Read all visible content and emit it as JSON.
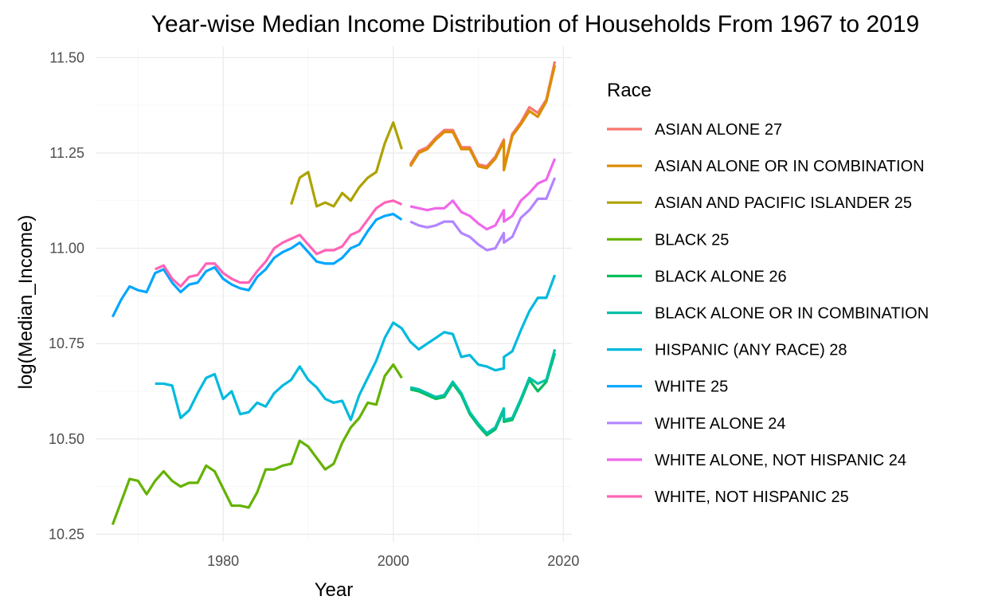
{
  "chart_data": {
    "type": "line",
    "title": "Year-wise Median Income Distribution of Households From 1967 to 2019",
    "xlabel": "Year",
    "ylabel": "log(Median_Income)",
    "xlim": [
      1965,
      2021
    ],
    "ylim": [
      10.23,
      11.53
    ],
    "x_ticks": [
      1980,
      2000,
      2020
    ],
    "y_ticks": [
      10.25,
      10.5,
      10.75,
      11.0,
      11.25,
      11.5
    ],
    "y_tick_labels": [
      "10.25",
      "10.50",
      "10.75",
      "11.00",
      "11.25",
      "11.50"
    ],
    "grid": true,
    "legend": {
      "title": "Race",
      "position": "right"
    },
    "series": [
      {
        "name": "ASIAN ALONE 27",
        "color": "#F8766D",
        "x": [
          2002,
          2003,
          2004,
          2005,
          2006,
          2007,
          2008,
          2009,
          2010,
          2011,
          2012,
          2013,
          2013.01,
          2014,
          2015,
          2016,
          2017,
          2018,
          2019
        ],
        "y": [
          11.22,
          11.255,
          11.265,
          11.29,
          11.31,
          11.31,
          11.265,
          11.265,
          11.22,
          11.215,
          11.24,
          11.285,
          11.21,
          11.3,
          11.33,
          11.37,
          11.355,
          11.39,
          11.49
        ]
      },
      {
        "name": "ASIAN ALONE OR IN COMBINATION",
        "color": "#DB8E00",
        "x": [
          2002,
          2003,
          2004,
          2005,
          2006,
          2007,
          2008,
          2009,
          2010,
          2011,
          2012,
          2013,
          2013.01,
          2014,
          2015,
          2016,
          2017,
          2018,
          2019
        ],
        "y": [
          11.215,
          11.25,
          11.26,
          11.285,
          11.305,
          11.305,
          11.26,
          11.26,
          11.215,
          11.21,
          11.235,
          11.28,
          11.205,
          11.295,
          11.325,
          11.36,
          11.345,
          11.385,
          11.48
        ]
      },
      {
        "name": "ASIAN AND PACIFIC ISLANDER 25",
        "color": "#AEA200",
        "x": [
          1988,
          1989,
          1990,
          1991,
          1992,
          1993,
          1994,
          1995,
          1996,
          1997,
          1998,
          1999,
          2000,
          2001
        ],
        "y": [
          11.115,
          11.185,
          11.2,
          11.11,
          11.12,
          11.11,
          11.145,
          11.125,
          11.16,
          11.185,
          11.2,
          11.275,
          11.33,
          11.26
        ]
      },
      {
        "name": "BLACK 25",
        "color": "#64B200",
        "x": [
          1967,
          1968,
          1969,
          1970,
          1971,
          1972,
          1973,
          1974,
          1975,
          1976,
          1977,
          1978,
          1979,
          1980,
          1981,
          1982,
          1983,
          1984,
          1985,
          1986,
          1987,
          1988,
          1989,
          1990,
          1991,
          1992,
          1993,
          1994,
          1995,
          1996,
          1997,
          1998,
          1999,
          2000,
          2001
        ],
        "y": [
          10.275,
          10.335,
          10.395,
          10.39,
          10.355,
          10.39,
          10.415,
          10.39,
          10.375,
          10.385,
          10.385,
          10.43,
          10.415,
          10.37,
          10.325,
          10.325,
          10.32,
          10.36,
          10.42,
          10.42,
          10.43,
          10.435,
          10.495,
          10.48,
          10.45,
          10.42,
          10.435,
          10.49,
          10.53,
          10.555,
          10.595,
          10.59,
          10.665,
          10.695,
          10.66
        ]
      },
      {
        "name": "BLACK ALONE 26",
        "color": "#00BD5C",
        "x": [
          2002,
          2003,
          2004,
          2005,
          2006,
          2007,
          2008,
          2009,
          2010,
          2011,
          2012,
          2013,
          2013.01,
          2014,
          2015,
          2016,
          2017,
          2018,
          2019
        ],
        "y": [
          10.63,
          10.625,
          10.615,
          10.605,
          10.61,
          10.645,
          10.615,
          10.565,
          10.535,
          10.51,
          10.525,
          10.575,
          10.545,
          10.55,
          10.6,
          10.655,
          10.625,
          10.65,
          10.725
        ]
      },
      {
        "name": "BLACK ALONE OR IN COMBINATION",
        "color": "#00C1A7",
        "x": [
          2002,
          2003,
          2004,
          2005,
          2006,
          2007,
          2008,
          2009,
          2010,
          2011,
          2012,
          2013,
          2013.01,
          2014,
          2015,
          2016,
          2017,
          2018,
          2019
        ],
        "y": [
          10.635,
          10.63,
          10.62,
          10.61,
          10.615,
          10.65,
          10.62,
          10.57,
          10.54,
          10.515,
          10.53,
          10.58,
          10.55,
          10.555,
          10.605,
          10.66,
          10.645,
          10.655,
          10.735
        ]
      },
      {
        "name": "HISPANIC (ANY RACE) 28",
        "color": "#00BADE",
        "x": [
          1972,
          1973,
          1974,
          1975,
          1976,
          1977,
          1978,
          1979,
          1980,
          1981,
          1982,
          1983,
          1984,
          1985,
          1986,
          1987,
          1988,
          1989,
          1990,
          1991,
          1992,
          1993,
          1994,
          1995,
          1996,
          1997,
          1998,
          1999,
          2000,
          2001,
          2002,
          2003,
          2004,
          2005,
          2006,
          2007,
          2008,
          2009,
          2010,
          2011,
          2012,
          2013,
          2013.01,
          2014,
          2015,
          2016,
          2017,
          2018,
          2019
        ],
        "y": [
          10.645,
          10.645,
          10.64,
          10.555,
          10.575,
          10.62,
          10.66,
          10.67,
          10.605,
          10.625,
          10.565,
          10.57,
          10.595,
          10.585,
          10.62,
          10.64,
          10.655,
          10.69,
          10.655,
          10.635,
          10.605,
          10.595,
          10.6,
          10.55,
          10.615,
          10.66,
          10.705,
          10.765,
          10.805,
          10.79,
          10.755,
          10.735,
          10.75,
          10.765,
          10.78,
          10.775,
          10.715,
          10.72,
          10.695,
          10.69,
          10.68,
          10.685,
          10.715,
          10.73,
          10.785,
          10.835,
          10.87,
          10.87,
          10.93
        ]
      },
      {
        "name": "WHITE 25",
        "color": "#00A6FF",
        "x": [
          1967,
          1968,
          1969,
          1970,
          1971,
          1972,
          1973,
          1974,
          1975,
          1976,
          1977,
          1978,
          1979,
          1980,
          1981,
          1982,
          1983,
          1984,
          1985,
          1986,
          1987,
          1988,
          1989,
          1990,
          1991,
          1992,
          1993,
          1994,
          1995,
          1996,
          1997,
          1998,
          1999,
          2000,
          2001
        ],
        "y": [
          10.82,
          10.865,
          10.9,
          10.89,
          10.885,
          10.935,
          10.945,
          10.91,
          10.885,
          10.905,
          10.91,
          10.94,
          10.95,
          10.92,
          10.905,
          10.895,
          10.89,
          10.925,
          10.945,
          10.975,
          10.99,
          11.0,
          11.015,
          10.99,
          10.965,
          10.96,
          10.96,
          10.975,
          11.0,
          11.01,
          11.045,
          11.075,
          11.085,
          11.09,
          11.075
        ]
      },
      {
        "name": "WHITE ALONE 24",
        "color": "#B385FF",
        "x": [
          2002,
          2003,
          2004,
          2005,
          2006,
          2007,
          2008,
          2009,
          2010,
          2011,
          2012,
          2013,
          2013.01,
          2014,
          2015,
          2016,
          2017,
          2018,
          2019
        ],
        "y": [
          11.07,
          11.06,
          11.055,
          11.06,
          11.07,
          11.07,
          11.04,
          11.03,
          11.01,
          10.995,
          11.0,
          11.04,
          11.015,
          11.03,
          11.08,
          11.1,
          11.13,
          11.13,
          11.185
        ]
      },
      {
        "name": "WHITE ALONE, NOT HISPANIC 24",
        "color": "#EF67EB",
        "x": [
          2002,
          2003,
          2004,
          2005,
          2006,
          2007,
          2008,
          2009,
          2010,
          2011,
          2012,
          2013,
          2013.01,
          2014,
          2015,
          2016,
          2017,
          2018,
          2019
        ],
        "y": [
          11.11,
          11.105,
          11.1,
          11.105,
          11.105,
          11.125,
          11.095,
          11.085,
          11.065,
          11.05,
          11.06,
          11.1,
          11.07,
          11.085,
          11.125,
          11.145,
          11.17,
          11.18,
          11.235
        ]
      },
      {
        "name": "WHITE, NOT HISPANIC 25",
        "color": "#FF63B6",
        "x": [
          1972,
          1973,
          1974,
          1975,
          1976,
          1977,
          1978,
          1979,
          1980,
          1981,
          1982,
          1983,
          1984,
          1985,
          1986,
          1987,
          1988,
          1989,
          1990,
          1991,
          1992,
          1993,
          1994,
          1995,
          1996,
          1997,
          1998,
          1999,
          2000,
          2001
        ],
        "y": [
          10.945,
          10.955,
          10.92,
          10.9,
          10.925,
          10.93,
          10.96,
          10.96,
          10.935,
          10.92,
          10.91,
          10.91,
          10.94,
          10.965,
          11.0,
          11.015,
          11.025,
          11.035,
          11.01,
          10.985,
          10.995,
          10.995,
          11.005,
          11.035,
          11.045,
          11.075,
          11.105,
          11.12,
          11.125,
          11.115
        ]
      }
    ]
  }
}
